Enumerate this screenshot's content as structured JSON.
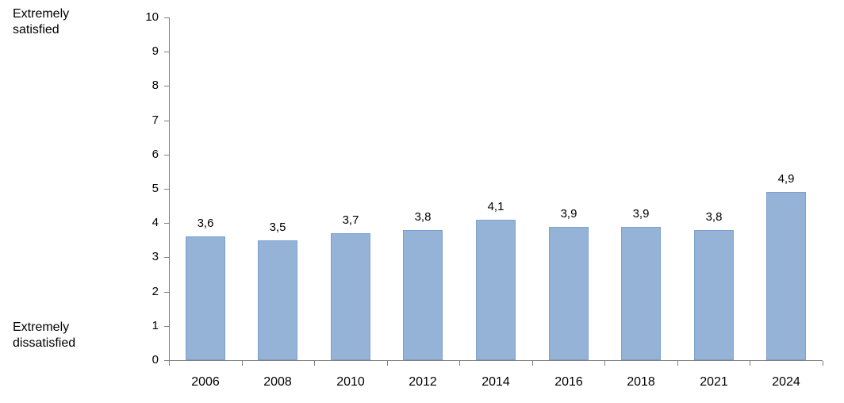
{
  "chart_data": {
    "type": "bar",
    "categories": [
      "2006",
      "2008",
      "2010",
      "2012",
      "2014",
      "2016",
      "2018",
      "2021",
      "2024"
    ],
    "values": [
      3.6,
      3.5,
      3.7,
      3.8,
      4.1,
      3.9,
      3.9,
      3.8,
      4.9
    ],
    "value_labels": [
      "3,6",
      "3,5",
      "3,7",
      "3,8",
      "4,1",
      "3,9",
      "3,9",
      "3,8",
      "4,9"
    ],
    "title": "",
    "xlabel": "",
    "ylabel": "",
    "ylim": [
      0,
      10
    ],
    "ytick_interval": 1,
    "ytick_labels": [
      "0",
      "1",
      "2",
      "3",
      "4",
      "5",
      "6",
      "7",
      "8",
      "9",
      "10"
    ],
    "grid": false,
    "legend": false,
    "bar_color": "#95b3d7",
    "bar_border_color": "#7ea0cd",
    "axis_color": "#808080",
    "y_axis_top_annotation": "Extremely satisfied",
    "y_axis_bottom_annotation": "Extremely dissatisfied"
  },
  "labels": {
    "top_left": "Extremely\nsatisfied",
    "bottom_left": "Extremely\ndissatisfied"
  }
}
